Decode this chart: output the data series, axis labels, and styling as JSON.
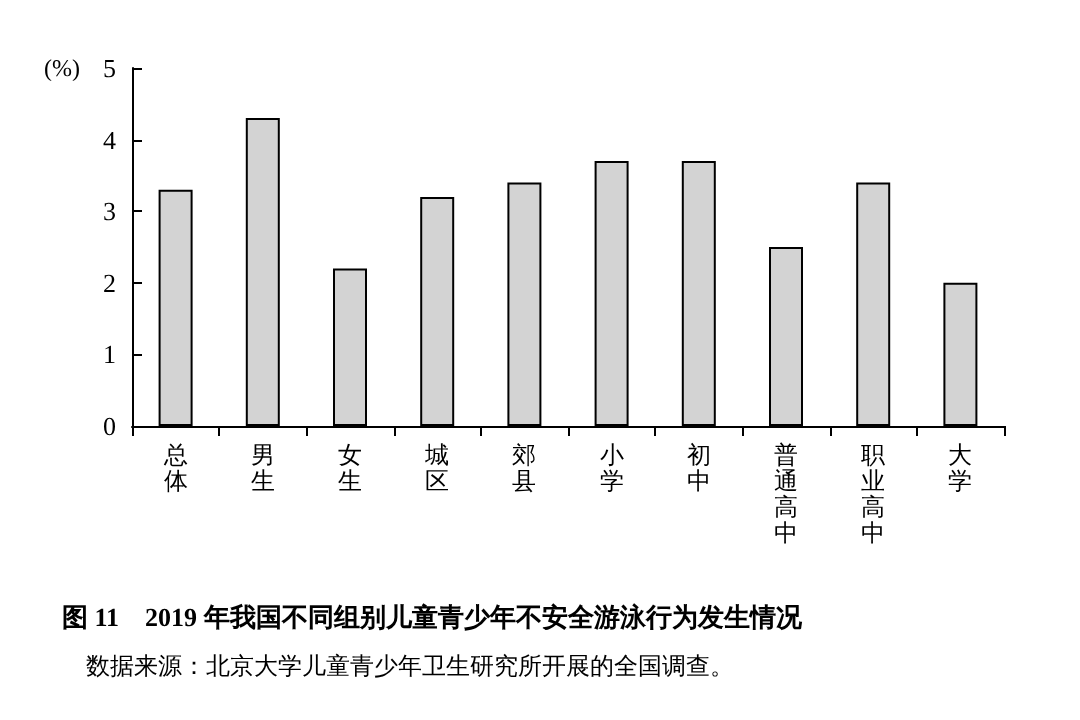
{
  "chart_data": {
    "type": "bar",
    "title": "图 11　2019 年我国不同组别儿童青少年不安全游泳行为发生情况",
    "ylabel": "(%)",
    "categories": [
      "总体",
      "男生",
      "女生",
      "城区",
      "郊县",
      "小学",
      "初中",
      "普通高中",
      "职业高中",
      "大学"
    ],
    "values": [
      3.3,
      4.3,
      2.2,
      3.2,
      3.4,
      3.7,
      3.7,
      2.5,
      3.4,
      2.0
    ],
    "color": "#d3d3d3",
    "ylim": [
      0,
      5
    ],
    "yticks": [
      0,
      1,
      2,
      3,
      4,
      5
    ],
    "grid": false,
    "annotations": [
      "数据来源：北京大学儿童青少年卫生研究所开展的全国调查。"
    ]
  }
}
